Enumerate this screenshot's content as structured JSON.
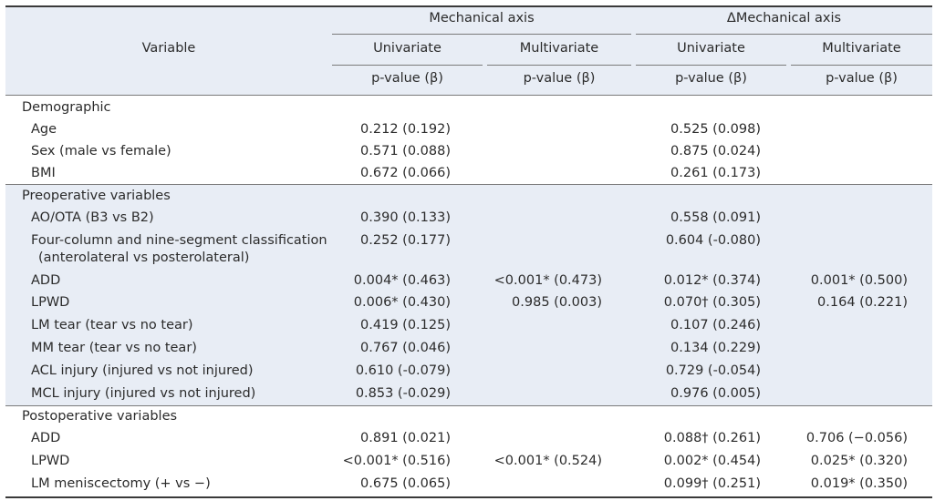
{
  "header": {
    "variable": "Variable",
    "group1": "Mechanical axis",
    "group2": "ΔMechanical axis",
    "univariate": "Univariate",
    "multivariate": "Multivariate",
    "pvalue": "p-value (β)"
  },
  "sections": [
    {
      "title": "Demographic",
      "shaded": false,
      "rows": [
        {
          "label": "Age",
          "c1": "0.212 (0.192)",
          "c2": "",
          "c3": "0.525 (0.098)",
          "c4": ""
        },
        {
          "label": "Sex (male vs female)",
          "c1": "0.571 (0.088)",
          "c2": "",
          "c3": "0.875 (0.024)",
          "c4": ""
        },
        {
          "label": "BMI",
          "c1": "0.672 (0.066)",
          "c2": "",
          "c3": "0.261 (0.173)",
          "c4": ""
        }
      ]
    },
    {
      "title": "Preoperative variables",
      "shaded": true,
      "rows": [
        {
          "label": "AO/OTA (B3 vs B2)",
          "c1": "0.390 (0.133)",
          "c2": "",
          "c3": "0.558 (0.091)",
          "c4": ""
        },
        {
          "label": "Four-column and nine-segment classification",
          "label2": "(anterolateral vs posterolateral)",
          "c1": "0.252 (0.177)",
          "c2": "",
          "c3": "0.604 (-0.080)",
          "c4": ""
        },
        {
          "label": "ADD",
          "c1": "0.004* (0.463)",
          "c2": "<0.001* (0.473)",
          "c3": "0.012* (0.374)",
          "c4": "0.001* (0.500)"
        },
        {
          "label": "LPWD",
          "c1": "0.006* (0.430)",
          "c2": "0.985 (0.003)",
          "c3": "0.070† (0.305)",
          "c4": "0.164 (0.221)"
        },
        {
          "label": "LM tear (tear vs no tear)",
          "c1": "0.419 (0.125)",
          "c2": "",
          "c3": "0.107 (0.246)",
          "c4": ""
        },
        {
          "label": "MM tear (tear vs no tear)",
          "c1": "0.767 (0.046)",
          "c2": "",
          "c3": "0.134 (0.229)",
          "c4": ""
        },
        {
          "label": "ACL injury (injured vs not injured)",
          "c1": "0.610 (-0.079)",
          "c2": "",
          "c3": "0.729 (-0.054)",
          "c4": ""
        },
        {
          "label": "MCL injury (injured vs not injured)",
          "c1": "0.853 (-0.029)",
          "c2": "",
          "c3": "0.976 (0.005)",
          "c4": ""
        }
      ]
    },
    {
      "title": "Postoperative variables",
      "shaded": false,
      "rows": [
        {
          "label": "ADD",
          "c1": "0.891 (0.021)",
          "c2": "",
          "c3": "0.088† (0.261)",
          "c4": "0.706 (−0.056)"
        },
        {
          "label": "LPWD",
          "c1": "<0.001* (0.516)",
          "c2": "<0.001* (0.524)",
          "c3": "0.002* (0.454)",
          "c4": "0.025* (0.320)"
        },
        {
          "label": "LM meniscectomy (+ vs −)",
          "c1": "0.675 (0.065)",
          "c2": "",
          "c3": "0.099† (0.251)",
          "c4": "0.019* (0.350)"
        }
      ]
    }
  ]
}
